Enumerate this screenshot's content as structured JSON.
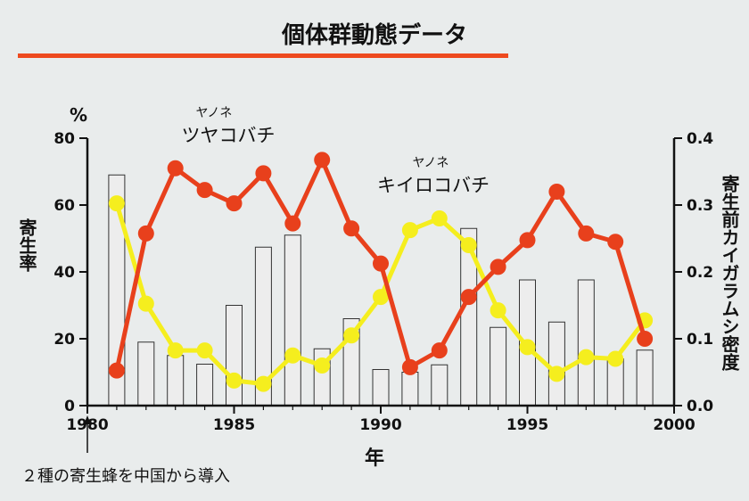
{
  "title": "個体群動態データ",
  "colors": {
    "underline": "#ee4a1f",
    "series_red": "#e8401c",
    "series_yellow": "#f5ee1e",
    "bar_fill": "#ededed",
    "bar_stroke": "#333333"
  },
  "annotations": {
    "species1_small": "ヤノネ",
    "species1_big": "ツヤコバチ",
    "species2_small": "ヤノネ",
    "species2_big": "キイロコバチ",
    "introduction_note": "２種の寄生蜂を中国から導入"
  },
  "chart_data": {
    "type": "bar",
    "xlabel": "年",
    "ylabel_left": "寄生率",
    "ylabel_left_unit": "%",
    "ylabel_right": "寄生前カイガラムシ密度",
    "xlim": [
      1980,
      2000
    ],
    "ylim_left": [
      0,
      80
    ],
    "ylim_right": [
      0,
      0.4
    ],
    "x_ticks": [
      1980,
      1985,
      1990,
      1995,
      2000
    ],
    "y_ticks_left": [
      0,
      20,
      40,
      60,
      80
    ],
    "y_ticks_right": [
      "0.0",
      "0.1",
      "0.2",
      "0.3",
      "0.4"
    ],
    "years": [
      1981,
      1982,
      1983,
      1984,
      1985,
      1986,
      1987,
      1988,
      1989,
      1990,
      1991,
      1992,
      1993,
      1994,
      1995,
      1996,
      1997,
      1998,
      1999
    ],
    "bars_density": [
      0.345,
      0.095,
      0.075,
      0.062,
      0.15,
      0.237,
      0.255,
      0.085,
      0.13,
      0.054,
      0.05,
      0.061,
      0.265,
      0.117,
      0.188,
      0.125,
      0.188,
      0.07,
      0.083
    ],
    "series": [
      {
        "name": "ツヤコバチ",
        "axis": "left",
        "color": "#e8401c",
        "values": [
          10.5,
          51.5,
          71,
          64.5,
          60.5,
          69.5,
          54.5,
          73.5,
          53,
          42.5,
          11.5,
          16.5,
          32.5,
          41.5,
          49.5,
          64,
          51.5,
          49,
          20
        ]
      },
      {
        "name": "キイロコバチ",
        "axis": "left",
        "color": "#f5ee1e",
        "values": [
          60.5,
          30.5,
          16.5,
          16.5,
          7.5,
          6.5,
          15,
          12,
          21,
          32.5,
          52.5,
          56,
          48,
          28.5,
          17.5,
          9.5,
          14.5,
          14,
          25.5
        ]
      }
    ]
  }
}
